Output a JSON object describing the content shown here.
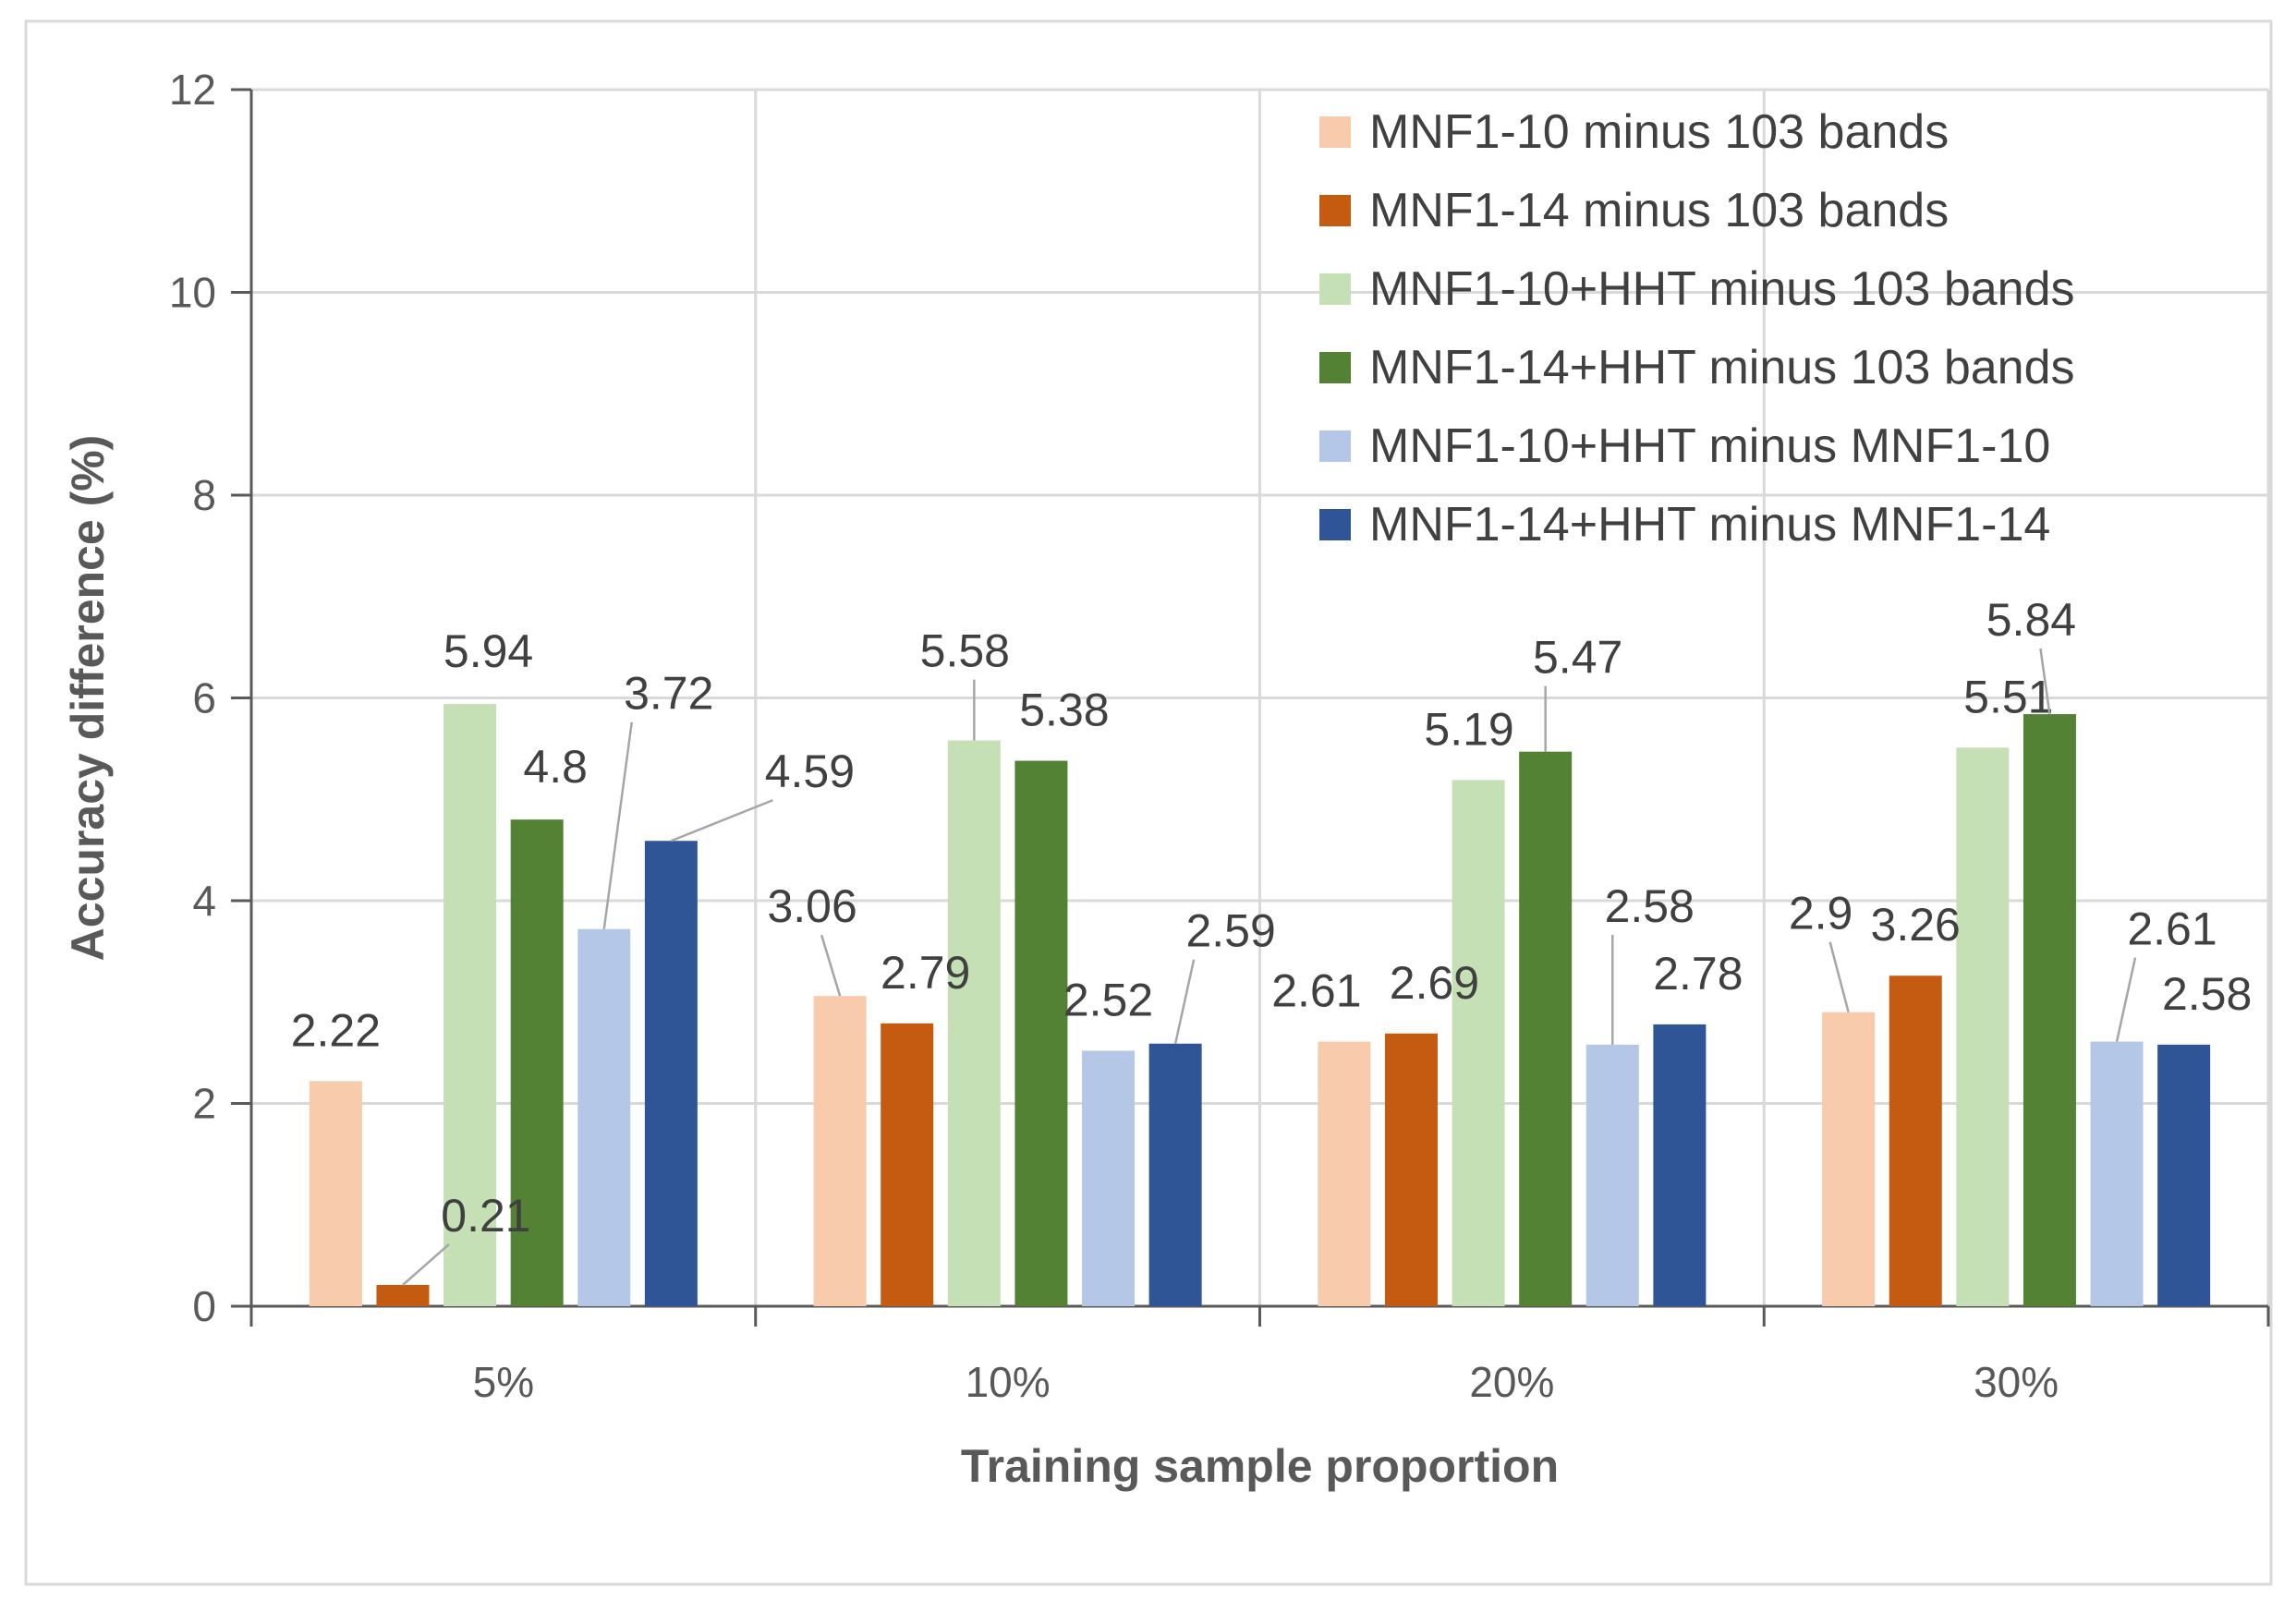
{
  "chart_data": {
    "type": "bar",
    "title": "",
    "xlabel": "Training sample proportion",
    "ylabel": "Accuracy difference (%)",
    "ylim": [
      0,
      12
    ],
    "yticks": [
      "0",
      "2",
      "4",
      "6",
      "8",
      "10",
      "12"
    ],
    "grid": true,
    "legend_position": "top-right",
    "categories": [
      "5%",
      "10%",
      "20%",
      "30%"
    ],
    "series": [
      {
        "name": "MNF1-10 minus 103 bands",
        "color": "#F8CBAD",
        "values": [
          2.22,
          3.06,
          2.61,
          2.9
        ],
        "labels": [
          "2.22",
          "3.06",
          "2.61",
          "2.9"
        ]
      },
      {
        "name": "MNF1-14 minus 103 bands",
        "color": "#C55A11",
        "values": [
          0.21,
          2.79,
          2.69,
          3.26
        ],
        "labels": [
          "0.21",
          "2.79",
          "2.69",
          "3.26"
        ]
      },
      {
        "name": "MNF1-10+HHT minus 103 bands",
        "color": "#C5E0B4",
        "values": [
          5.94,
          5.58,
          5.19,
          5.51
        ],
        "labels": [
          "5.94",
          "5.58",
          "5.19",
          "5.51"
        ]
      },
      {
        "name": "MNF1-14+HHT minus 103 bands",
        "color": "#548235",
        "values": [
          4.8,
          5.38,
          5.47,
          5.84
        ],
        "labels": [
          "4.8",
          "5.38",
          "5.47",
          "5.84"
        ]
      },
      {
        "name": "MNF1-10+HHT minus MNF1-10",
        "color": "#B4C7E7",
        "values": [
          3.72,
          2.52,
          2.58,
          2.61
        ],
        "labels": [
          "3.72",
          "2.52",
          "2.58",
          "2.61"
        ]
      },
      {
        "name": "MNF1-14+HHT minus MNF1-14",
        "color": "#2F5597",
        "values": [
          4.59,
          2.59,
          2.78,
          2.58
        ],
        "labels": [
          "4.59",
          "2.59",
          "2.78",
          "2.58"
        ]
      }
    ]
  }
}
